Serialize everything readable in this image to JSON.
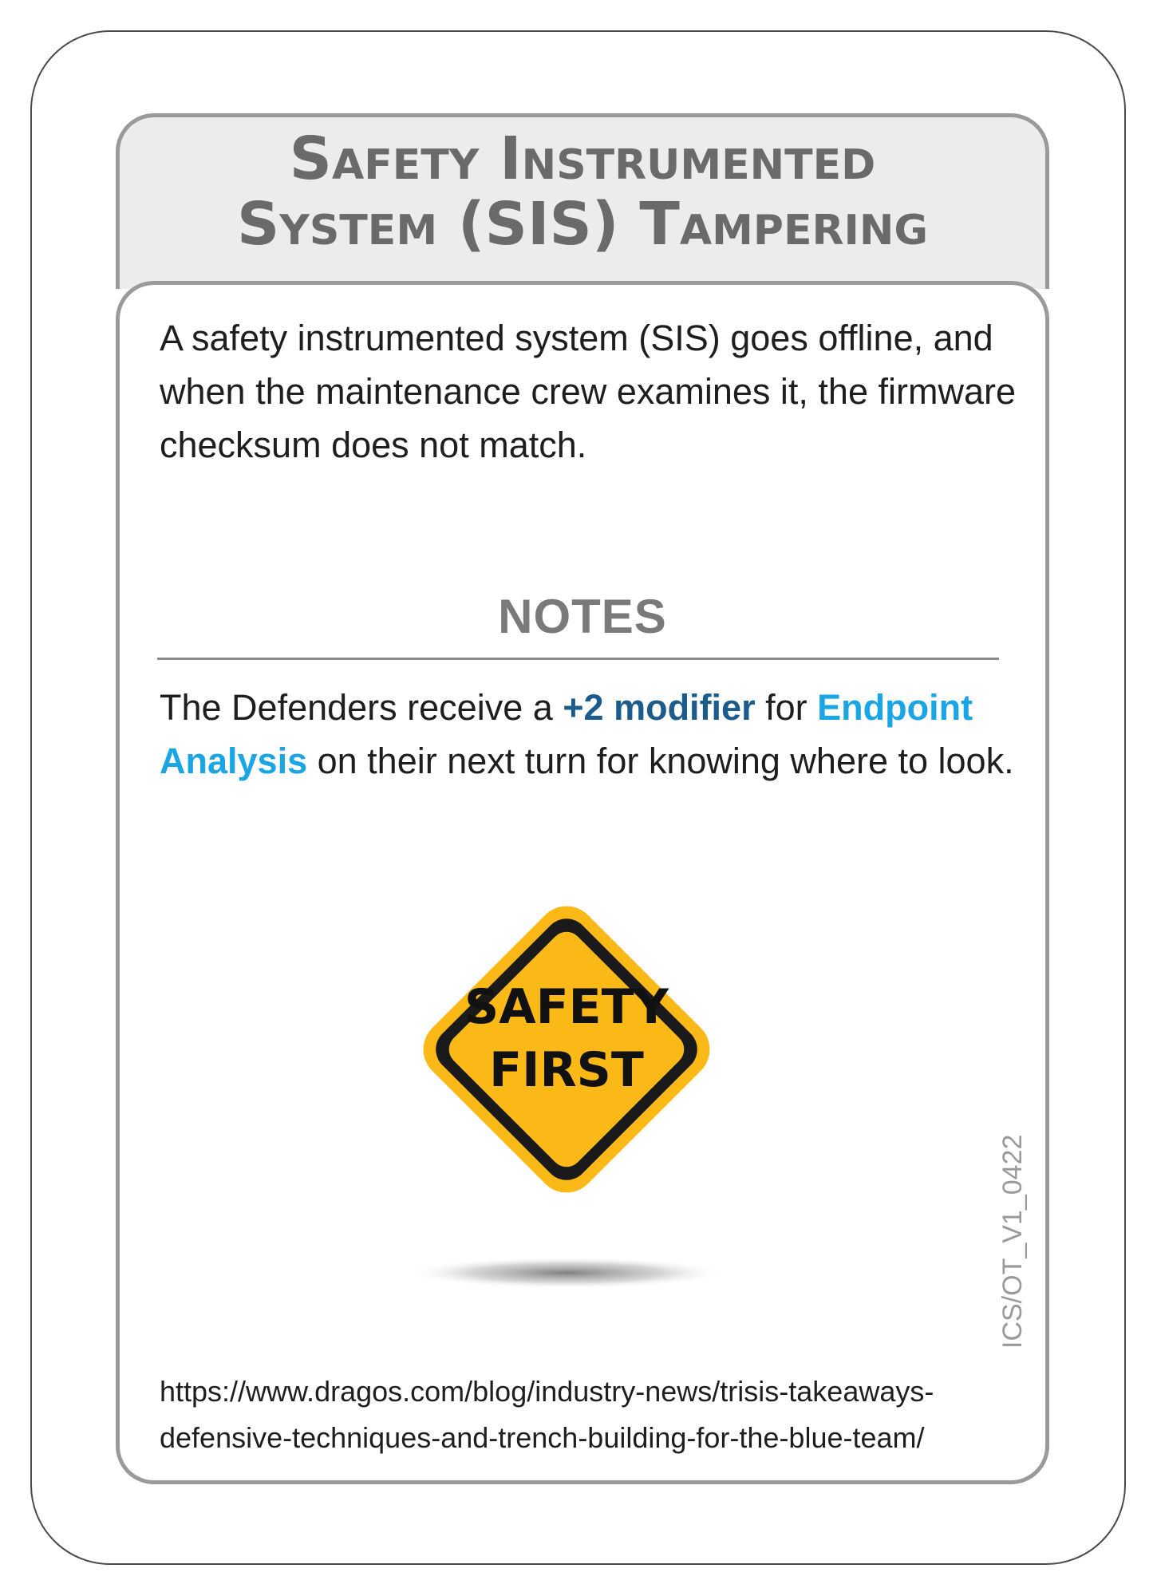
{
  "card": {
    "title_line1": "Safety Instrumented",
    "title_line2": "System (SIS) Tampering",
    "description": "A safety instrumented system (SIS) goes offline, and when the maintenance crew examines it, the firmware checksum does not match.",
    "notes_heading": "NOTES",
    "notes": {
      "prefix": "The Defenders receive a ",
      "modifier": "+2 modifier",
      "middle": " for ",
      "skill": "Endpoint Analysis",
      "suffix": " on their next turn for knowing where to look."
    },
    "sign": {
      "line1": "SAFETY",
      "line2": "FIRST",
      "icon": "safety-first-warning-sign"
    },
    "source_line1": "https://www.dragos.com/blog/industry-news/trisis-takeaways-",
    "source_line2": "defensive-techniques-and-trench-building-for-the-blue-team/",
    "version_code": "ICS/OT_V1_0422"
  },
  "colors": {
    "modifier": "#1c5c8c",
    "skill": "#1aa6e4",
    "sign_fill": "#fbb917",
    "frame_gray": "#9a9a9a"
  }
}
